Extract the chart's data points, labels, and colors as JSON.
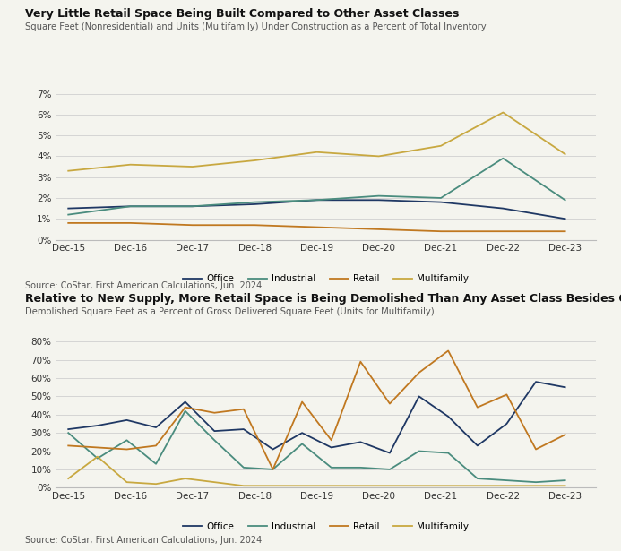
{
  "chart1": {
    "title": "Very Little Retail Space Being Built Compared to Other Asset Classes",
    "subtitle": "Square Feet (Nonresidential) and Units (Multifamily) Under Construction as a Percent of Total Inventory",
    "source": "Source: CoStar, First American Calculations, Jun. 2024",
    "x_labels": [
      "Dec-15",
      "Dec-16",
      "Dec-17",
      "Dec-18",
      "Dec-19",
      "Dec-20",
      "Dec-21",
      "Dec-22",
      "Dec-23"
    ],
    "ylim": [
      0,
      0.07
    ],
    "yticks": [
      0.0,
      0.01,
      0.02,
      0.03,
      0.04,
      0.05,
      0.06,
      0.07
    ],
    "ytick_labels": [
      "0%",
      "1%",
      "2%",
      "3%",
      "4%",
      "5%",
      "6%",
      "7%"
    ],
    "series": {
      "Office": {
        "color": "#1f3864",
        "values": [
          0.015,
          0.016,
          0.016,
          0.017,
          0.019,
          0.019,
          0.018,
          0.015,
          0.01
        ]
      },
      "Industrial": {
        "color": "#4a8c7e",
        "values": [
          0.012,
          0.016,
          0.016,
          0.018,
          0.019,
          0.021,
          0.02,
          0.039,
          0.019
        ]
      },
      "Retail": {
        "color": "#c07820",
        "values": [
          0.008,
          0.008,
          0.007,
          0.007,
          0.006,
          0.005,
          0.004,
          0.004,
          0.004
        ]
      },
      "Multifamily": {
        "color": "#c8a840",
        "values": [
          0.033,
          0.036,
          0.035,
          0.038,
          0.042,
          0.04,
          0.045,
          0.061,
          0.041
        ]
      }
    }
  },
  "chart2": {
    "title": "Relative to New Supply, More Retail Space is Being Demolished Than Any Asset Class Besides Office",
    "subtitle": "Demolished Square Feet as a Percent of Gross Delivered Square Feet (Units for Multifamily)",
    "source": "Source: CoStar, First American Calculations, Jun. 2024",
    "x_labels": [
      "Dec-15",
      "Dec-16",
      "Dec-17",
      "Dec-18",
      "Dec-19",
      "Dec-20",
      "Dec-21",
      "Dec-22",
      "Dec-23"
    ],
    "n_points": 18,
    "ylim": [
      0,
      0.8
    ],
    "yticks": [
      0.0,
      0.1,
      0.2,
      0.3,
      0.4,
      0.5,
      0.6,
      0.7,
      0.8
    ],
    "ytick_labels": [
      "0%",
      "10%",
      "20%",
      "30%",
      "40%",
      "50%",
      "60%",
      "70%",
      "80%"
    ],
    "series": {
      "Office": {
        "color": "#1f3864",
        "values": [
          0.32,
          0.34,
          0.37,
          0.33,
          0.47,
          0.31,
          0.32,
          0.21,
          0.3,
          0.22,
          0.25,
          0.19,
          0.5,
          0.39,
          0.23,
          0.35,
          0.58,
          0.55
        ]
      },
      "Industrial": {
        "color": "#4a8c7e",
        "values": [
          0.3,
          0.16,
          0.26,
          0.13,
          0.42,
          0.26,
          0.11,
          0.1,
          0.24,
          0.11,
          0.11,
          0.1,
          0.2,
          0.19,
          0.05,
          0.04,
          0.03,
          0.04
        ]
      },
      "Retail": {
        "color": "#c07820",
        "values": [
          0.23,
          0.22,
          0.21,
          0.23,
          0.44,
          0.41,
          0.43,
          0.1,
          0.47,
          0.26,
          0.69,
          0.46,
          0.63,
          0.75,
          0.44,
          0.51,
          0.21,
          0.29
        ]
      },
      "Multifamily": {
        "color": "#c8a840",
        "values": [
          0.05,
          0.17,
          0.03,
          0.02,
          0.05,
          0.03,
          0.01,
          0.01,
          0.01,
          0.01,
          0.01,
          0.01,
          0.01,
          0.01,
          0.01,
          0.01,
          0.01,
          0.01
        ]
      }
    }
  },
  "bg_color": "#f4f4ee",
  "grid_color": "#d0d0d0",
  "legend_order": [
    "Office",
    "Industrial",
    "Retail",
    "Multifamily"
  ]
}
